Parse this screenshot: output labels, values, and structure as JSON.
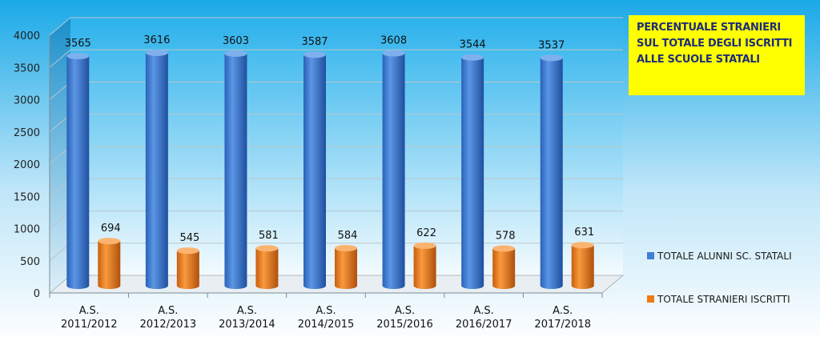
{
  "chart_data": {
    "type": "bar",
    "title_lines": [
      "PERCENTUALE STRANIERI",
      "SUL TOTALE  DEGLI ISCRITTI",
      "ALLE SCUOLE STATALI"
    ],
    "categories": [
      [
        "A.S.",
        "2011/2012"
      ],
      [
        "A.S.",
        "2012/2013"
      ],
      [
        "A.S.",
        "2013/2014"
      ],
      [
        "A.S.",
        "2014/2015"
      ],
      [
        "A.S.",
        "2015/2016"
      ],
      [
        "A.S.",
        "2016/2017"
      ],
      [
        "A.S.",
        "2017/2018"
      ]
    ],
    "series": [
      {
        "name": "TOTALE ALUNNI SC. STATALI",
        "values": [
          3565,
          3616,
          3603,
          3587,
          3608,
          3544,
          3537
        ],
        "color": "#3f7fd6",
        "color_dark": "#1f4f9e"
      },
      {
        "name": "TOTALE STRANIERI  ISCRITTI",
        "values": [
          694,
          545,
          581,
          584,
          622,
          578,
          631
        ],
        "color": "#f07a16",
        "color_dark": "#b0500c"
      }
    ],
    "yticks": [
      "0",
      "500",
      "1000",
      "1500",
      "2000",
      "2500",
      "3000",
      "3500",
      "4000"
    ],
    "ylim": [
      0,
      4000
    ],
    "grid": true,
    "legend_position": "right"
  }
}
